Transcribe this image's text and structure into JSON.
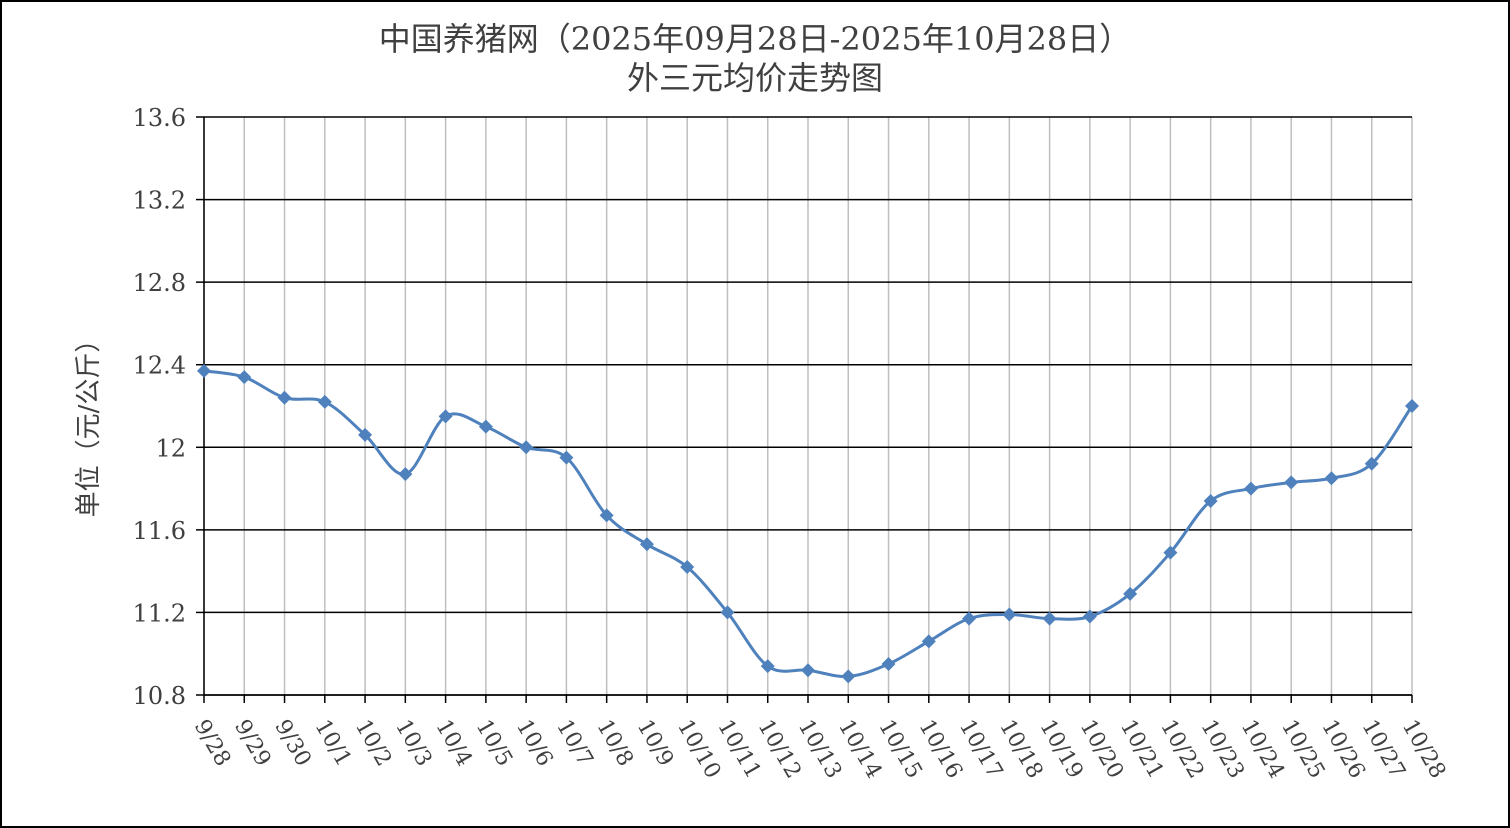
{
  "chart_data": {
    "type": "line",
    "title": "中国养猪网（2025年09月28日-2025年10月28日）",
    "subtitle": "外三元均价走势图",
    "xlabel": "",
    "ylabel": "单位（元/公斤）",
    "ylim": [
      10.8,
      13.6
    ],
    "yticks": [
      "13.6",
      "13.2",
      "12.8",
      "12.4",
      "12",
      "11.6",
      "11.2",
      "10.8"
    ],
    "ytick_values": [
      13.6,
      13.2,
      12.8,
      12.4,
      12.0,
      11.6,
      11.2,
      10.8
    ],
    "grid": true,
    "legend": "none",
    "categories": [
      "9/28",
      "9/29",
      "9/30",
      "10/1",
      "10/2",
      "10/3",
      "10/4",
      "10/5",
      "10/6",
      "10/7",
      "10/8",
      "10/9",
      "10/10",
      "10/11",
      "10/12",
      "10/13",
      "10/14",
      "10/15",
      "10/16",
      "10/17",
      "10/18",
      "10/19",
      "10/20",
      "10/21",
      "10/22",
      "10/23",
      "10/24",
      "10/25",
      "10/26",
      "10/27",
      "10/28"
    ],
    "series": [
      {
        "values": [
          12.37,
          12.34,
          12.24,
          12.22,
          12.06,
          11.87,
          12.15,
          12.1,
          12.0,
          11.95,
          11.67,
          11.53,
          11.42,
          11.2,
          10.94,
          10.92,
          10.89,
          10.95,
          11.06,
          11.17,
          11.19,
          11.17,
          11.18,
          11.29,
          11.49,
          11.74,
          11.8,
          11.83,
          11.85,
          11.92,
          12.2
        ]
      }
    ],
    "colors": {
      "line": "#4f81bd",
      "marker": "#4f81bd",
      "grid": "#000000",
      "vgrid": "#bfbfbf",
      "text": "#404040"
    }
  }
}
